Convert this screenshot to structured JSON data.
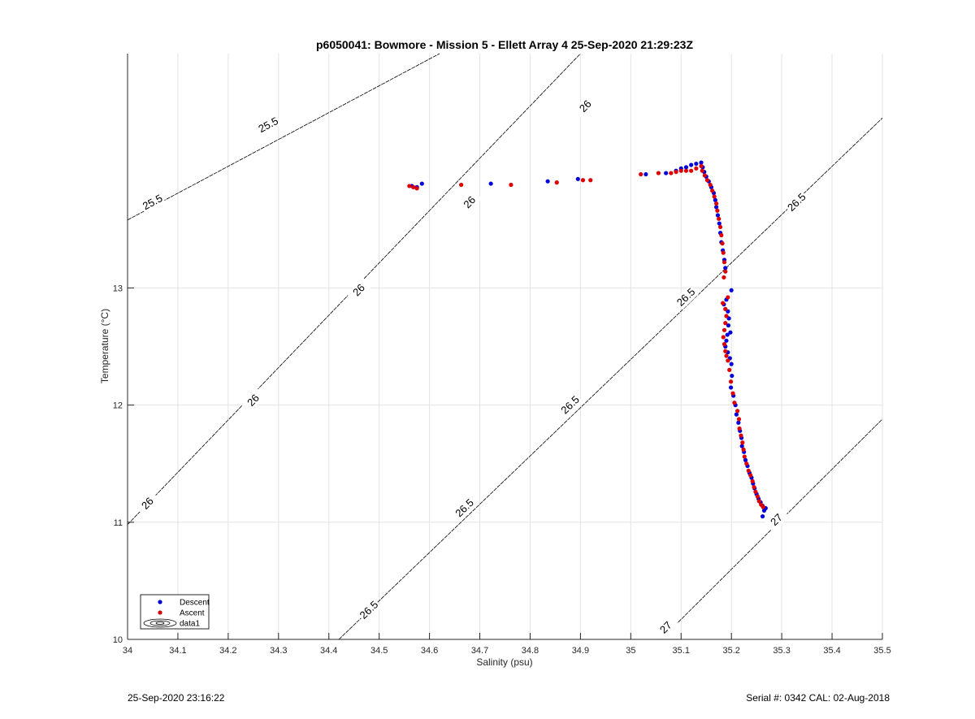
{
  "footer": {
    "left": "25-Sep-2020 23:16:22",
    "right": "Serial #: 0342  CAL: 02-Aug-2018"
  },
  "chart_data": {
    "type": "scatter",
    "title": "p6050041: Bowmore - Mission 5 - Ellett Array 4 25-Sep-2020 21:29:23Z",
    "xlabel": "Salinity (psu)",
    "ylabel": "Temperature (°C)",
    "xlim": [
      34,
      35.5
    ],
    "ylim": [
      10,
      15
    ],
    "xticks": [
      "34",
      "34.1",
      "34.2",
      "34.3",
      "34.4",
      "34.5",
      "34.6",
      "34.7",
      "34.8",
      "34.9",
      "35",
      "35.1",
      "35.2",
      "35.3",
      "35.4",
      "35.5"
    ],
    "yticks": [
      "10",
      "11",
      "12",
      "13"
    ],
    "grid": true,
    "legend": {
      "placement": "bottom-left",
      "entries": [
        {
          "label": "Descent",
          "color": "#0000dd",
          "marker": "dot"
        },
        {
          "label": "Ascent",
          "color": "#dd0000",
          "marker": "dot"
        },
        {
          "label": "data1",
          "marker": "contour"
        }
      ]
    },
    "isopycnals": [
      {
        "label": "25.5",
        "line": [
          [
            34,
            13.58
          ],
          [
            34.62,
            15.0
          ]
        ],
        "label_positions": [
          [
            34.05,
            13.73
          ],
          [
            34.28,
            14.39
          ]
        ]
      },
      {
        "label": "26",
        "line": [
          [
            34,
            10.98
          ],
          [
            34.9,
            15.0
          ]
        ],
        "label_positions": [
          [
            34.04,
            11.16
          ],
          [
            34.25,
            12.04
          ],
          [
            34.46,
            12.98
          ],
          [
            34.68,
            13.73
          ],
          [
            34.91,
            14.55
          ]
        ]
      },
      {
        "label": "26.5",
        "line": [
          [
            34.42,
            10.0
          ],
          [
            35.5,
            14.45
          ]
        ],
        "label_positions": [
          [
            34.48,
            10.25
          ],
          [
            34.67,
            11.12
          ],
          [
            34.88,
            12.0
          ],
          [
            35.11,
            12.92
          ],
          [
            35.33,
            13.73
          ]
        ]
      },
      {
        "label": "27",
        "line": [
          [
            35.06,
            10.0
          ],
          [
            35.5,
            11.88
          ]
        ],
        "label_positions": [
          [
            35.07,
            10.1
          ],
          [
            35.29,
            11.02
          ]
        ]
      }
    ],
    "series": [
      {
        "name": "Descent",
        "color": "#0000dd",
        "points": [
          [
            34.565,
            13.87
          ],
          [
            34.575,
            13.86
          ],
          [
            34.585,
            13.89
          ],
          [
            34.722,
            13.89
          ],
          [
            34.835,
            13.91
          ],
          [
            34.895,
            13.93
          ],
          [
            35.03,
            13.97
          ],
          [
            35.07,
            13.98
          ],
          [
            35.09,
            14.0
          ],
          [
            35.1,
            14.02
          ],
          [
            35.11,
            14.03
          ],
          [
            35.12,
            14.05
          ],
          [
            35.13,
            14.06
          ],
          [
            35.14,
            14.07
          ],
          [
            35.143,
            14.03
          ],
          [
            35.146,
            13.99
          ],
          [
            35.15,
            13.95
          ],
          [
            35.155,
            13.91
          ],
          [
            35.16,
            13.86
          ],
          [
            35.165,
            13.81
          ],
          [
            35.168,
            13.75
          ],
          [
            35.17,
            13.69
          ],
          [
            35.173,
            13.62
          ],
          [
            35.176,
            13.55
          ],
          [
            35.178,
            13.47
          ],
          [
            35.18,
            13.39
          ],
          [
            35.183,
            13.32
          ],
          [
            35.186,
            13.24
          ],
          [
            35.188,
            13.17
          ],
          [
            35.2,
            12.98
          ],
          [
            35.19,
            12.9
          ],
          [
            35.185,
            12.86
          ],
          [
            35.193,
            12.8
          ],
          [
            35.195,
            12.74
          ],
          [
            35.194,
            12.68
          ],
          [
            35.192,
            12.6
          ],
          [
            35.19,
            12.55
          ],
          [
            35.188,
            12.5
          ],
          [
            35.193,
            12.45
          ],
          [
            35.197,
            12.4
          ],
          [
            35.198,
            12.62
          ],
          [
            35.2,
            12.35
          ],
          [
            35.201,
            12.25
          ],
          [
            35.199,
            12.15
          ],
          [
            35.204,
            12.08
          ],
          [
            35.208,
            12.0
          ],
          [
            35.21,
            11.92
          ],
          [
            35.214,
            11.85
          ],
          [
            35.217,
            11.78
          ],
          [
            35.22,
            11.72
          ],
          [
            35.221,
            11.65
          ],
          [
            35.225,
            11.6
          ],
          [
            35.228,
            11.53
          ],
          [
            35.232,
            11.48
          ],
          [
            35.236,
            11.42
          ],
          [
            35.24,
            11.38
          ],
          [
            35.243,
            11.33
          ],
          [
            35.246,
            11.29
          ],
          [
            35.25,
            11.24
          ],
          [
            35.254,
            11.2
          ],
          [
            35.258,
            11.17
          ],
          [
            35.262,
            11.14
          ],
          [
            35.265,
            11.1
          ],
          [
            35.268,
            11.12
          ],
          [
            35.262,
            11.05
          ]
        ]
      },
      {
        "name": "Ascent",
        "color": "#dd0000",
        "points": [
          [
            34.56,
            13.87
          ],
          [
            34.568,
            13.86
          ],
          [
            34.575,
            13.85
          ],
          [
            34.663,
            13.88
          ],
          [
            34.762,
            13.88
          ],
          [
            34.853,
            13.9
          ],
          [
            34.905,
            13.92
          ],
          [
            34.92,
            13.92
          ],
          [
            35.02,
            13.97
          ],
          [
            35.055,
            13.98
          ],
          [
            35.08,
            13.98
          ],
          [
            35.09,
            13.99
          ],
          [
            35.1,
            14.0
          ],
          [
            35.11,
            14.0
          ],
          [
            35.12,
            14.0
          ],
          [
            35.13,
            14.02
          ],
          [
            35.14,
            14.04
          ],
          [
            35.142,
            14.0
          ],
          [
            35.147,
            13.96
          ],
          [
            35.152,
            13.92
          ],
          [
            35.158,
            13.88
          ],
          [
            35.162,
            13.83
          ],
          [
            35.166,
            13.78
          ],
          [
            35.17,
            13.72
          ],
          [
            35.172,
            13.66
          ],
          [
            35.175,
            13.59
          ],
          [
            35.178,
            13.52
          ],
          [
            35.18,
            13.45
          ],
          [
            35.182,
            13.38
          ],
          [
            35.184,
            13.3
          ],
          [
            35.186,
            13.22
          ],
          [
            35.188,
            13.14
          ],
          [
            35.185,
            13.09
          ],
          [
            35.193,
            12.92
          ],
          [
            35.183,
            12.87
          ],
          [
            35.188,
            12.82
          ],
          [
            35.19,
            12.76
          ],
          [
            35.188,
            12.7
          ],
          [
            35.186,
            12.64
          ],
          [
            35.184,
            12.58
          ],
          [
            35.186,
            12.52
          ],
          [
            35.188,
            12.46
          ],
          [
            35.19,
            12.42
          ],
          [
            35.193,
            12.38
          ],
          [
            35.196,
            12.3
          ],
          [
            35.199,
            12.2
          ],
          [
            35.203,
            12.1
          ],
          [
            35.206,
            12.02
          ],
          [
            35.212,
            11.95
          ],
          [
            35.215,
            11.88
          ],
          [
            35.216,
            11.8
          ],
          [
            35.219,
            11.74
          ],
          [
            35.222,
            11.68
          ],
          [
            35.224,
            11.62
          ],
          [
            35.226,
            11.56
          ],
          [
            35.23,
            11.5
          ],
          [
            35.234,
            11.44
          ],
          [
            35.238,
            11.4
          ],
          [
            35.242,
            11.35
          ],
          [
            35.245,
            11.3
          ],
          [
            35.248,
            11.26
          ],
          [
            35.252,
            11.22
          ],
          [
            35.255,
            11.18
          ],
          [
            35.259,
            11.15
          ],
          [
            35.263,
            11.13
          ]
        ]
      }
    ]
  }
}
